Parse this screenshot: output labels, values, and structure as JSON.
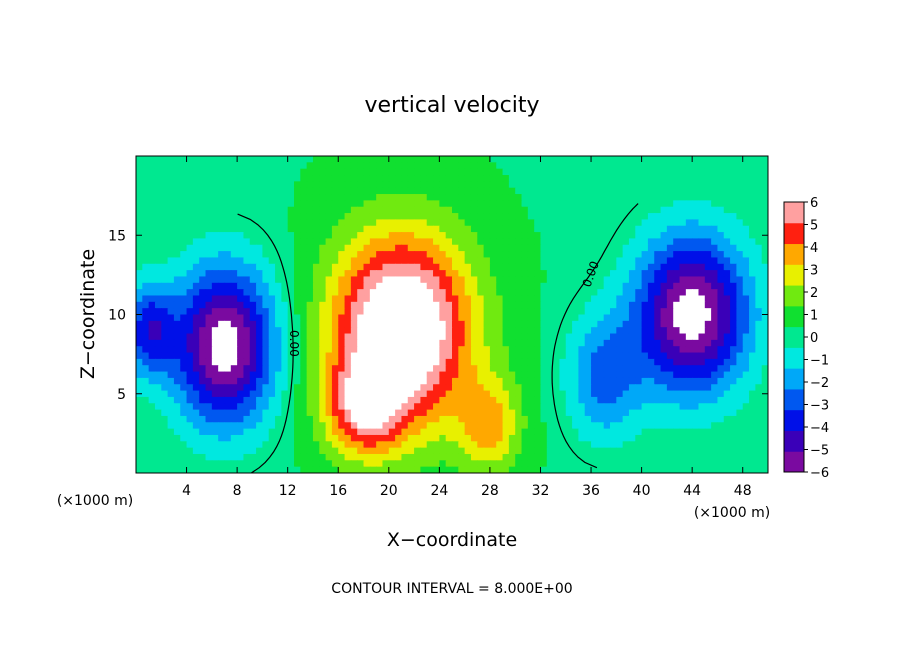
{
  "chart_data": {
    "type": "heatmap",
    "title": "vertical velocity",
    "xlabel": "X−coordinate",
    "ylabel": "Z−coordinate",
    "x_unit_left": "(×1000 m)",
    "x_unit_right": "(×1000 m)",
    "xlim": [
      0,
      50
    ],
    "ylim": [
      0,
      20
    ],
    "xticks": [
      4,
      8,
      12,
      16,
      20,
      24,
      28,
      32,
      36,
      40,
      44,
      48
    ],
    "yticks": [
      5,
      10,
      15
    ],
    "colorbar": {
      "min": -6,
      "max": 6,
      "ticks": [
        "6",
        "5",
        "4",
        "3",
        "2",
        "1",
        "0",
        "−1",
        "−2",
        "−3",
        "−4",
        "−5",
        "−6"
      ],
      "colors": [
        "#7a0aa0",
        "#3a00b8",
        "#0010e8",
        "#0058f0",
        "#00a8f8",
        "#00e8e0",
        "#00e890",
        "#10e030",
        "#70ea10",
        "#e8f000",
        "#ffa800",
        "#ff2010",
        "#ffa0a0"
      ]
    },
    "contour_labels": [
      "0.00",
      "0.00"
    ],
    "footer": "CONTOUR INTERVAL = 8.000E+00",
    "features": [
      {
        "kind": "updraft",
        "x": 21,
        "z": 9,
        "sx": 5.5,
        "sz": 6,
        "amp": 8
      },
      {
        "kind": "updraft",
        "x": 18,
        "z": 4,
        "sx": 3,
        "sz": 3,
        "amp": 4
      },
      {
        "kind": "updraft",
        "x": 28,
        "z": 3,
        "sx": 2.5,
        "sz": 3,
        "amp": 3
      },
      {
        "kind": "downdraft",
        "x": 7,
        "z": 8,
        "sx": 4,
        "sz": 5,
        "amp": -7
      },
      {
        "kind": "downdraft",
        "x": 44,
        "z": 10,
        "sx": 4.5,
        "sz": 5,
        "amp": -7
      },
      {
        "kind": "downdraft",
        "x": 1,
        "z": 9,
        "sx": 2,
        "sz": 3,
        "amp": -4
      },
      {
        "kind": "downdraft",
        "x": 37,
        "z": 6,
        "sx": 3,
        "sz": 4,
        "amp": -3
      }
    ]
  }
}
